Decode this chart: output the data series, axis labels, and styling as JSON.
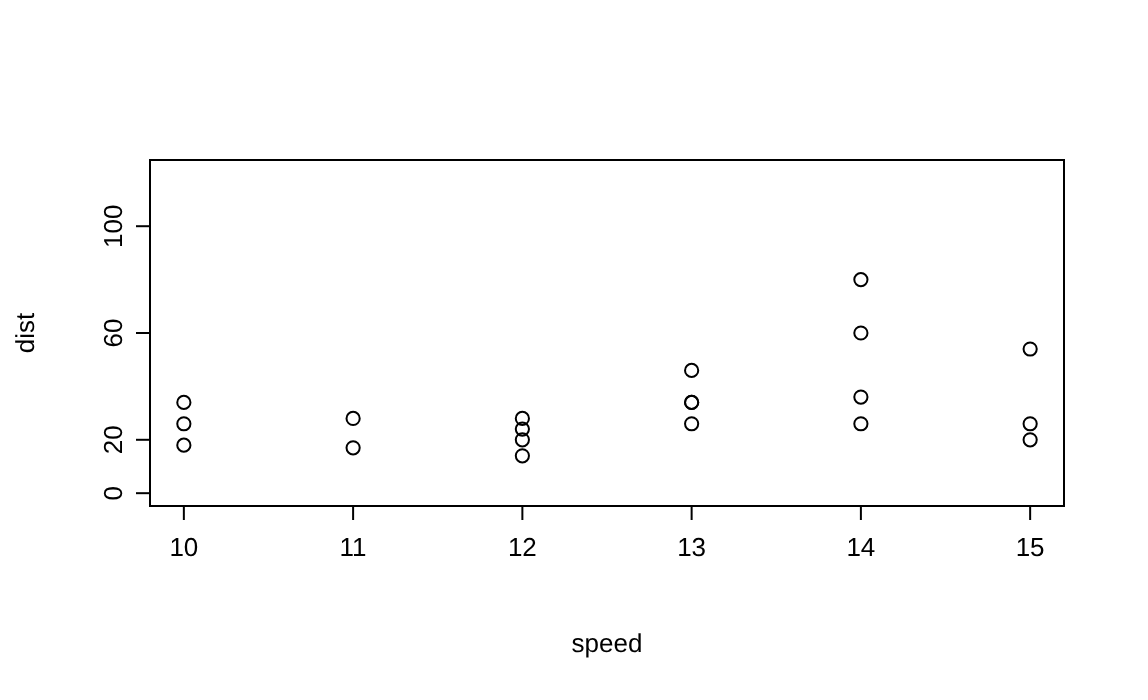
{
  "chart_data": {
    "type": "scatter",
    "xlabel": "speed",
    "ylabel": "dist",
    "x": [
      10,
      10,
      10,
      11,
      11,
      12,
      12,
      12,
      12,
      13,
      13,
      13,
      13,
      14,
      14,
      14,
      14,
      15,
      15,
      15
    ],
    "values": [
      18,
      26,
      34,
      17,
      28,
      14,
      20,
      24,
      28,
      26,
      34,
      34,
      46,
      26,
      36,
      60,
      80,
      20,
      26,
      54
    ],
    "color": "#000000",
    "marker": "circle",
    "xlim": [
      9.8,
      15.2
    ],
    "xticks": [
      10,
      11,
      12,
      13,
      14,
      15
    ],
    "ylim": [
      -4.8,
      124.8
    ],
    "yticks": [
      0,
      20,
      60,
      100
    ],
    "grid": false
  }
}
